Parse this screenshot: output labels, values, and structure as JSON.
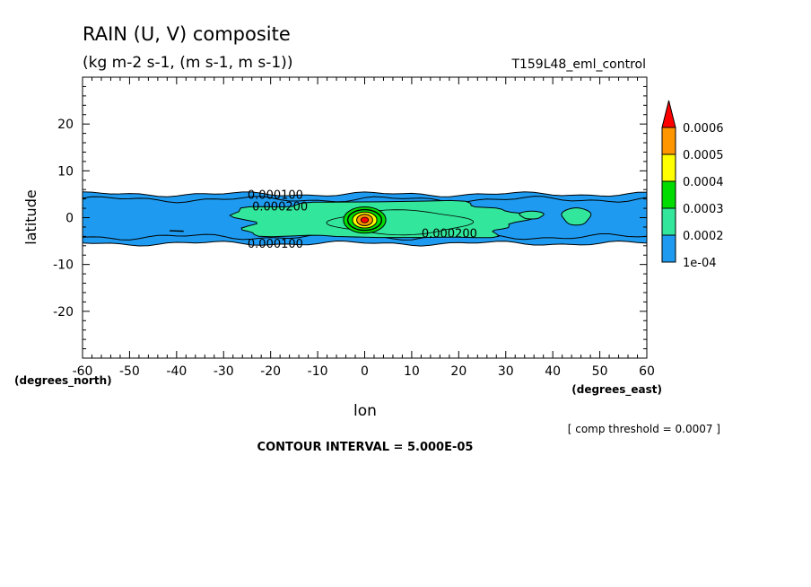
{
  "chart_data": {
    "type": "heatmap",
    "title": "RAIN (U, V) composite",
    "subtitle": "(kg m-2 s-1, (m s-1, m s-1))",
    "run_label": "T159L48_eml_control",
    "xlabel": "lon",
    "ylabel": "latitude",
    "x_unit": "(degrees_east)",
    "y_unit": "(degrees_north)",
    "xlim": [
      -60,
      60
    ],
    "ylim": [
      -30,
      30
    ],
    "x_ticks": [
      -60,
      -50,
      -40,
      -30,
      -20,
      -10,
      0,
      10,
      20,
      30,
      40,
      50,
      60
    ],
    "y_ticks": [
      20,
      10,
      0,
      -10,
      -20
    ],
    "x_tick_labels": [
      "-60",
      "-50",
      "-40",
      "-30",
      "-20",
      "-10",
      "0",
      "10",
      "20",
      "30",
      "40",
      "50",
      "60"
    ],
    "y_tick_labels": [
      "20",
      "10",
      "0",
      "-10",
      "-20"
    ],
    "colorbar": {
      "levels": [
        0.0001,
        0.0002,
        0.0003,
        0.0004,
        0.0005,
        0.0006
      ],
      "labels": [
        "1e-04",
        "0.0002",
        "0.0003",
        "0.0004",
        "0.0005",
        "0.0006"
      ],
      "colors": [
        "#1e9bf0",
        "#32e69b",
        "#00dc00",
        "#ffff00",
        "#ff9600",
        "#ff0000"
      ]
    },
    "contour_labels": [
      {
        "text": "0.000100",
        "lon": -19,
        "lat": 5
      },
      {
        "text": "0.000200",
        "lon": -18,
        "lat": 2.5
      },
      {
        "text": "0.000200",
        "lon": 18,
        "lat": -3.3
      },
      {
        "text": "0.000100",
        "lon": -19,
        "lat": -5.5
      }
    ],
    "rain_regions": {
      "band_1e-04": {
        "lat_south": -5.5,
        "lat_north": 5
      },
      "blob_0.0002": {
        "lon_west": -27,
        "lon_east": 33,
        "lat_south": -4.3,
        "lat_north": 3.3
      },
      "blob_0.0003": {
        "lon_west": -7,
        "lon_east": 22,
        "lat_south": -3.5,
        "lat_north": 1.5
      },
      "core": {
        "lon": 0,
        "lat": -0.5
      },
      "east_patches": [
        {
          "lon_west": 33,
          "lon_east": 38,
          "lat_south": -0.3,
          "lat_north": 1.4
        },
        {
          "lon_west": 42,
          "lon_east": 48,
          "lat_south": -1.6,
          "lat_north": 2.1
        }
      ]
    },
    "contour_interval": "CONTOUR INTERVAL = 5.000E-05",
    "comp_threshold": "[ comp threshold = 0.0007 ]",
    "grid": false,
    "legend_position": "right"
  }
}
